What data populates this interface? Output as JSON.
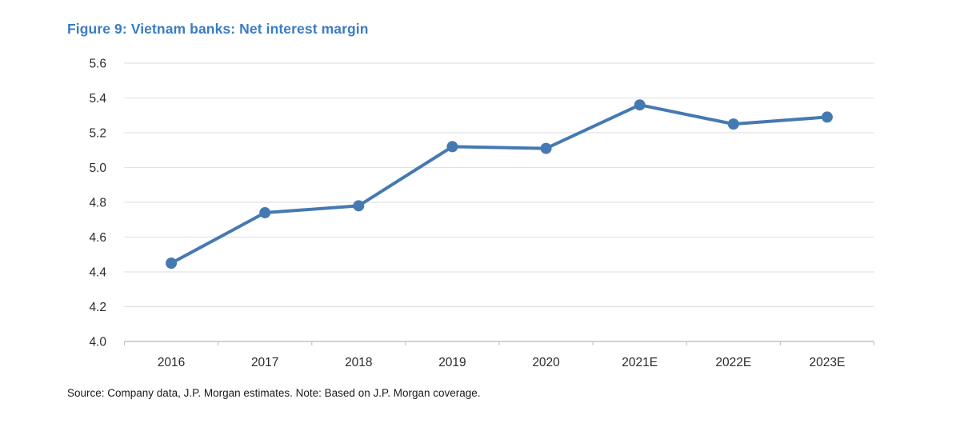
{
  "figure": {
    "title": "Figure 9: Vietnam banks: Net interest margin",
    "source_note": "Source: Company data, J.P. Morgan estimates. Note: Based on J.P. Morgan coverage."
  },
  "colors": {
    "title_text": "#3b7cc4",
    "line": "#4579b2",
    "marker": "#4579b2",
    "gridline": "#e2e2e2",
    "axis_line": "#c4c4c4",
    "tick_mark": "#c4c4c4",
    "axis_text": "#2b2b2b"
  },
  "chart_data": {
    "type": "line",
    "title": "Figure 9: Vietnam banks: Net interest margin",
    "categories": [
      "2016",
      "2017",
      "2018",
      "2019",
      "2020",
      "2021E",
      "2022E",
      "2023E"
    ],
    "series": [
      {
        "name": "Net interest margin (%)",
        "values": [
          4.45,
          4.74,
          4.78,
          5.12,
          5.11,
          5.36,
          5.25,
          5.29
        ]
      }
    ],
    "xlabel": "",
    "ylabel": "",
    "ylim": [
      4.0,
      5.6
    ],
    "y_tick_step": 0.2,
    "y_tick_labels_top_to_bottom": [
      "5.6",
      "5.4",
      "5.2",
      "5.0",
      "4.8",
      "4.6",
      "4.4",
      "4.2",
      "4.0"
    ],
    "grid": true,
    "legend_position": "none",
    "marker": "circle"
  }
}
